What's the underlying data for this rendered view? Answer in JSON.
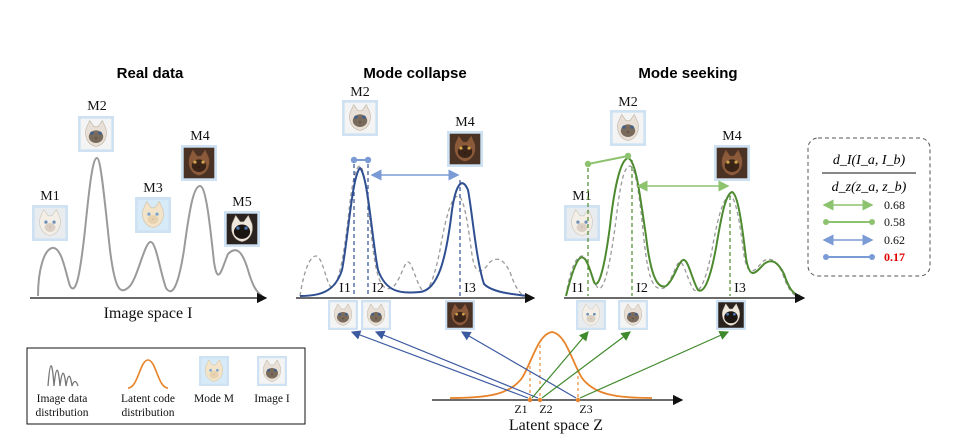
{
  "panels": {
    "real": {
      "title": "Real data",
      "xlabel": "Image space I",
      "modes": [
        "M1",
        "M2",
        "M3",
        "M4",
        "M5"
      ]
    },
    "collapse": {
      "title": "Mode collapse",
      "modes": [
        "M2",
        "M4"
      ],
      "images": [
        "I1",
        "I2",
        "I3"
      ]
    },
    "seeking": {
      "title": "Mode seeking",
      "modes": [
        "M1",
        "M2",
        "M4"
      ],
      "images": [
        "I1",
        "I2",
        "I3"
      ]
    }
  },
  "latent": {
    "label": "Latent space Z",
    "codes": [
      "Z1",
      "Z2",
      "Z3"
    ]
  },
  "metric_box": {
    "formula_num": "d_I(I_a, I_b)",
    "formula_den": "d_z(z_a, z_b)",
    "rows": [
      {
        "value": "0.68",
        "color": "#8dc26f",
        "style": "double-arrow",
        "highlight": false
      },
      {
        "value": "0.58",
        "color": "#8dc26f",
        "style": "dot-line",
        "highlight": false
      },
      {
        "value": "0.62",
        "color": "#7b9bd6",
        "style": "double-arrow",
        "highlight": false
      },
      {
        "value": "0.17",
        "color": "#7b9bd6",
        "style": "dot-line",
        "highlight": true
      }
    ]
  },
  "legend": {
    "items": [
      {
        "line1": "Image data",
        "line2": "distribution"
      },
      {
        "line1": "Latent code",
        "line2": "distribution"
      },
      {
        "line1": "Mode M",
        "line2": ""
      },
      {
        "line1": "Image I",
        "line2": ""
      }
    ]
  },
  "colors": {
    "real": "#9a9a9a",
    "collapse": "#2f4f92",
    "seeking": "#4e8a2f",
    "latent": "#e8832a",
    "highlight": "#e00000",
    "arrow_blue": "#3c5aa0",
    "arrow_green": "#3f8a2c"
  }
}
